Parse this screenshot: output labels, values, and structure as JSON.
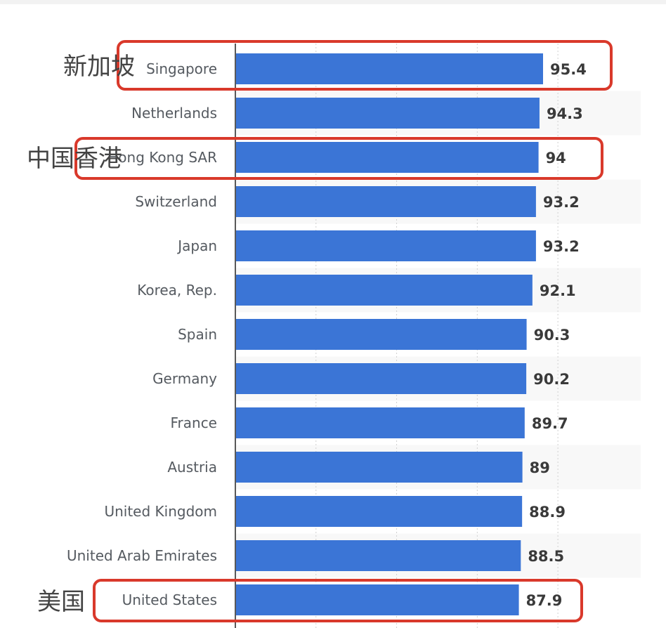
{
  "chart_data": {
    "type": "bar",
    "orientation": "horizontal",
    "categories": [
      "Singapore",
      "Netherlands",
      "Hong Kong SAR",
      "Switzerland",
      "Japan",
      "Korea, Rep.",
      "Spain",
      "Germany",
      "France",
      "Austria",
      "United Kingdom",
      "United Arab Emirates",
      "United States"
    ],
    "values": [
      95.4,
      94.3,
      94,
      93.2,
      93.2,
      92.1,
      90.3,
      90.2,
      89.7,
      89,
      88.9,
      88.5,
      87.9
    ],
    "title": "",
    "xlabel": "",
    "ylabel": "",
    "xlim": [
      0,
      100
    ],
    "grid": "vertical dotted",
    "bar_color": "#3b75d6",
    "highlight_color": "#d9392b",
    "highlighted": [
      0,
      2,
      12
    ],
    "annotations": {
      "Singapore": "新加坡",
      "Hong Kong SAR": "中国香港",
      "United States": "美国"
    }
  }
}
